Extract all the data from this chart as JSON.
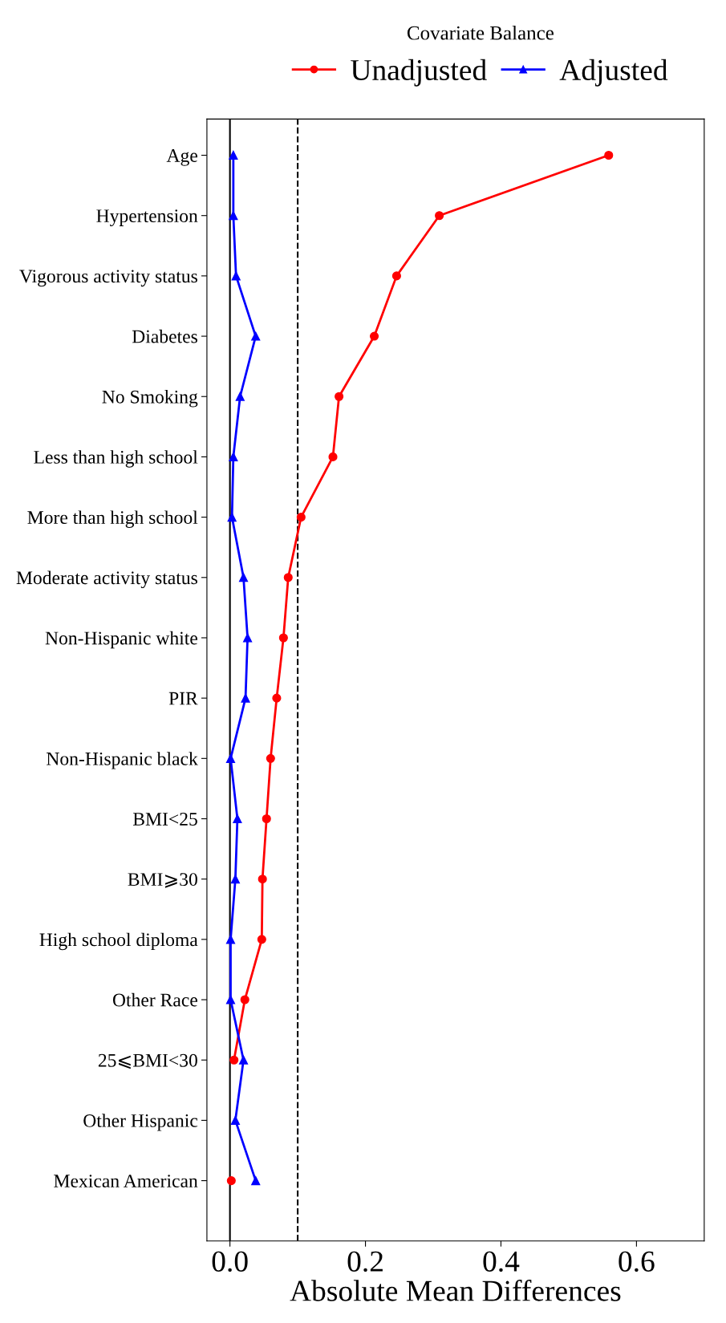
{
  "chart_data": {
    "type": "line",
    "orientation": "horizontal",
    "legend_title": "Covariate Balance",
    "xlabel": "Absolute Mean Differences",
    "categories": [
      "Age",
      "Hypertension",
      "Vigorous activity status",
      "Diabetes",
      "No Smoking",
      "Less than high school",
      "More than high school",
      "Moderate activity status",
      "Non-Hispanic white",
      "PIR",
      "Non-Hispanic black",
      "BMI<25",
      "BMI⩾30",
      "High school diploma",
      "Other Race",
      "25⩽BMI<30",
      "Other Hispanic",
      "Mexican American"
    ],
    "series": [
      {
        "name": "Unadjusted",
        "color": "#ff0000",
        "marker": "circle",
        "values": [
          0.559,
          0.309,
          0.246,
          0.213,
          0.161,
          0.152,
          0.105,
          0.086,
          0.079,
          0.069,
          0.06,
          0.054,
          0.048,
          0.047,
          0.022,
          0.006,
          null,
          0.002
        ]
      },
      {
        "name": "Adjusted",
        "color": "#0000ff",
        "marker": "triangle",
        "values": [
          0.005,
          0.005,
          0.009,
          0.038,
          0.015,
          0.005,
          0.003,
          0.02,
          0.026,
          0.023,
          0.001,
          0.011,
          0.008,
          0.001,
          0.001,
          0.02,
          0.008,
          0.038
        ]
      }
    ],
    "xlim": [
      -0.034,
      0.7
    ],
    "xticks": [
      {
        "value": 0,
        "label": "0.0"
      },
      0.2,
      0.4,
      0.6
    ],
    "ref_lines": [
      {
        "axis": "x",
        "value": 0,
        "color": "#000000",
        "line_style": "solid"
      },
      {
        "axis": "x",
        "value": 0.1,
        "color": "#000000",
        "line_style": "dashed"
      }
    ],
    "grid": false,
    "legend": "top",
    "line_style": "solid"
  }
}
